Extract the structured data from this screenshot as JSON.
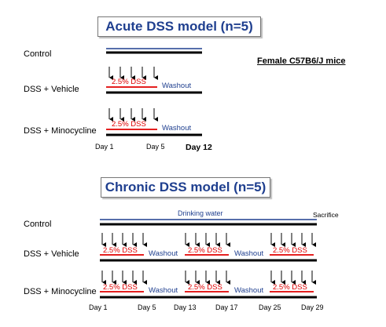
{
  "acute": {
    "title": "Acute DSS model (n=5)",
    "groups": [
      "Control",
      "DSS + Vehicle",
      "DSS + Minocycline"
    ],
    "dss_label": "2.5% DSS",
    "washout_label": "Washout",
    "days": [
      "Day 1",
      "Day 5",
      "Day 12"
    ]
  },
  "mice_label": "Female C57B6/J mice",
  "chronic": {
    "title": "Chronic DSS model (n=5)",
    "groups": [
      "Control",
      "DSS + Vehicle",
      "DSS + Minocycline"
    ],
    "drinking_water_label": "Drinking water",
    "sacrifice_label": "Sacrifice",
    "dss_label": "2.5% DSS",
    "washout_label": "Washout",
    "days": [
      "Day 1",
      "Day 5",
      "Day 13",
      "Day 17",
      "Day 25",
      "Day 29"
    ]
  },
  "colors": {
    "title": "#1f3f8f",
    "dss": "#e00000",
    "water": "#1f3f8f",
    "bar": "#000000"
  }
}
